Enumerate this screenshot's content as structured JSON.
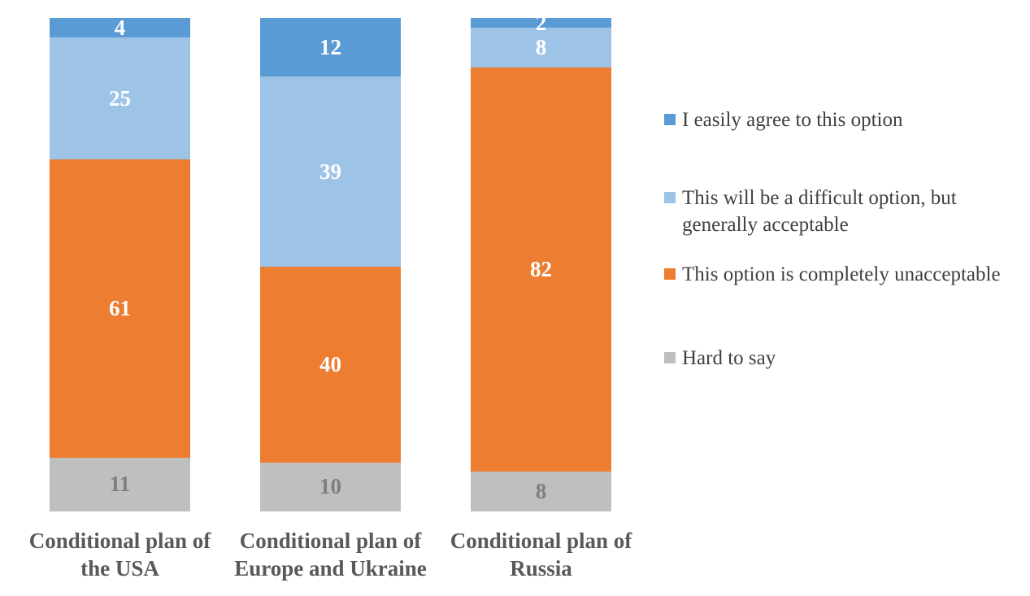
{
  "figure": {
    "background_color": "#FFFFFF"
  },
  "chart_data": {
    "type": "bar",
    "subtype": "100%-stacked-column",
    "orientation": "vertical",
    "title": "",
    "xlabel": "",
    "ylabel": "",
    "grid": false,
    "axes_visible": false,
    "value_labels_shown": true,
    "legend_position": "right",
    "legend_marker": "square",
    "legend_text_color": "#404040",
    "category_label_color": "#595959",
    "categories": [
      "Conditional plan of the USA",
      "Conditional plan of Europe and Ukraine",
      "Conditional plan of Russia"
    ],
    "series": [
      {
        "name": "I easily agree to this option",
        "color": "#5B9BD5",
        "value_label_color": "#FFFFFF",
        "values": [
          4,
          12,
          2
        ]
      },
      {
        "name": "This will be a difficult option, but generally acceptable",
        "color": "#9DC3E6",
        "value_label_color": "#FFFFFF",
        "values": [
          25,
          39,
          8
        ]
      },
      {
        "name": "This option is completely unacceptable",
        "color": "#ED7D31",
        "value_label_color": "#FFFFFF",
        "values": [
          61,
          40,
          82
        ]
      },
      {
        "name": "Hard to say",
        "color": "#BFBFBF",
        "value_label_color": "#7F7F7F",
        "values": [
          11,
          10,
          8
        ]
      }
    ]
  }
}
